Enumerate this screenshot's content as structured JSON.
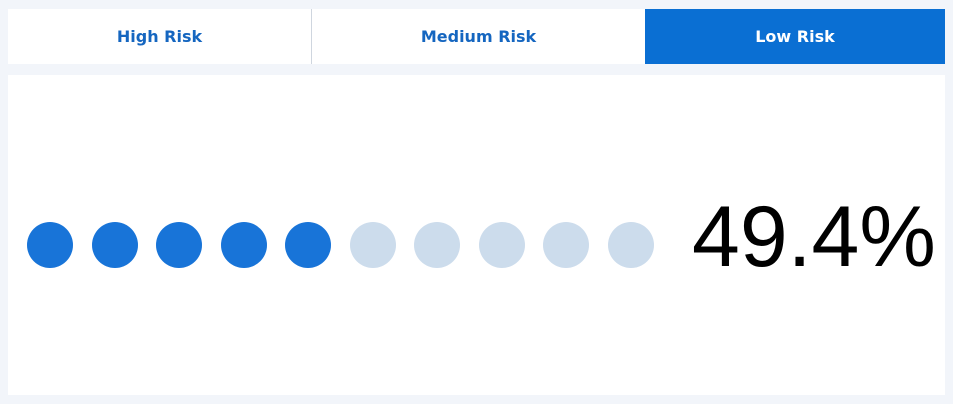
{
  "tabs": [
    {
      "label": "High Risk",
      "active": false
    },
    {
      "label": "Medium Risk",
      "active": false
    },
    {
      "label": "Low Risk",
      "active": true
    }
  ],
  "indicator": {
    "dots_total": 10,
    "dots_filled": 5,
    "value_text": "49.4%"
  },
  "colors": {
    "accent": "#0a6fd3",
    "tab_text": "#1566c0",
    "dot_filled": "#1874d8",
    "dot_empty": "#ccdcec",
    "page_background": "#f2f5fa"
  }
}
